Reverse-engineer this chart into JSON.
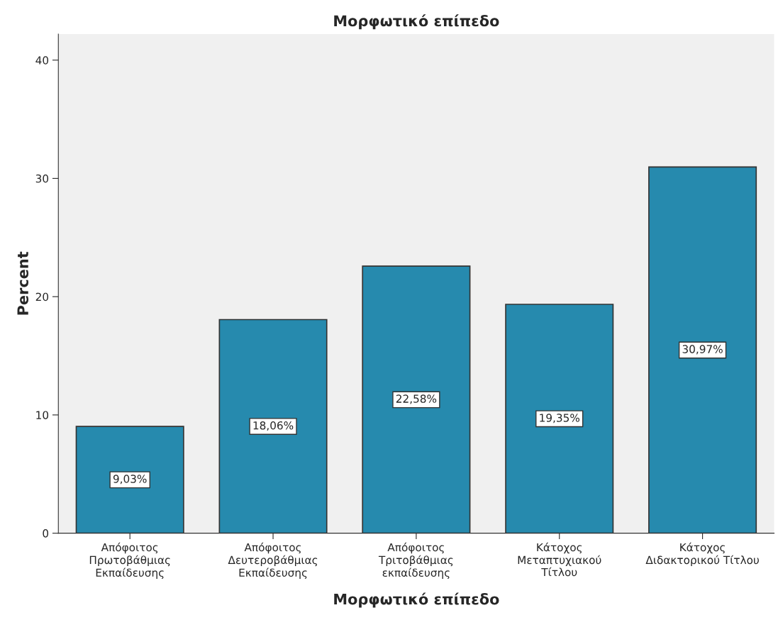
{
  "chart_data": {
    "type": "bar",
    "title": "Μορφωτικό επίπεδο",
    "xlabel": "Μορφωτικό επίπεδο",
    "ylabel": "Percent",
    "categories": [
      "Απόφοιτος\nΠρωτοβάθμιας\nΕκπαίδευσης",
      "Απόφοιτος\nΔευτεροβάθμιας\nΕκπαίδευσης",
      "Απόφοιτος\nΤριτοβάθμιας\nεκπαίδευσης",
      "Κάτοχος\nΜεταπτυχιακού\nΤίτλου",
      "Κάτοχος\nΔιδακτορικού Τίτλου"
    ],
    "values": [
      9.03,
      18.06,
      22.58,
      19.35,
      30.97
    ],
    "value_labels": [
      "9,03%",
      "18,06%",
      "22,58%",
      "19,35%",
      "30,97%"
    ],
    "color": "#268aae",
    "ylim": [
      0,
      42.2
    ],
    "yticks": [
      0,
      10,
      20,
      30,
      40
    ],
    "grid": false
  }
}
